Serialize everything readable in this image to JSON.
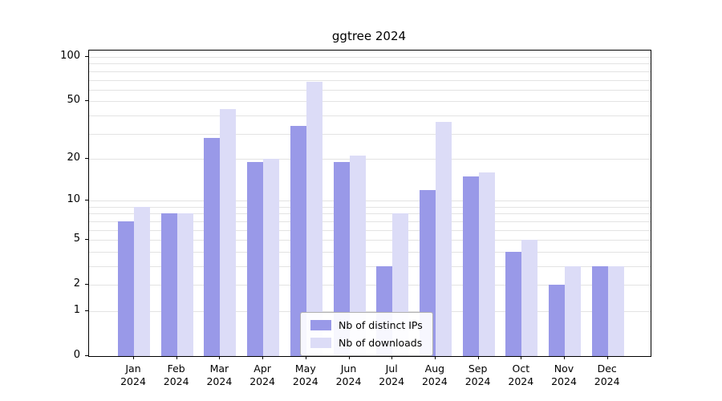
{
  "title": "ggtree 2024",
  "chart_data": {
    "type": "bar",
    "title": "ggtree 2024",
    "scale": "log1p",
    "grid": true,
    "legend_position": "lower center",
    "categories": [
      "Jan",
      "Feb",
      "Mar",
      "Apr",
      "May",
      "Jun",
      "Jul",
      "Aug",
      "Sep",
      "Oct",
      "Nov",
      "Dec"
    ],
    "year": "2024",
    "series": [
      {
        "name": "Nb of distinct IPs",
        "color": "#9999e8",
        "values": [
          7,
          8,
          28,
          19,
          34,
          19,
          3,
          12,
          15,
          4,
          2,
          3
        ]
      },
      {
        "name": "Nb of downloads",
        "color": "#dcdcf7",
        "values": [
          9,
          8,
          44,
          20,
          68,
          21,
          8,
          36,
          16,
          5,
          3,
          3
        ]
      }
    ],
    "yticks": [
      0,
      1,
      2,
      5,
      10,
      20,
      50,
      100
    ],
    "minor_gridlines": [
      3,
      4,
      6,
      7,
      8,
      9,
      30,
      40,
      60,
      70,
      80,
      90
    ],
    "ylim": [
      0,
      110
    ],
    "xlabel": "",
    "ylabel": ""
  },
  "colors": {
    "background": "#ffffff",
    "gridline": "#e3e3e3",
    "axis": "#000000",
    "legend_border": "#b0b0b0"
  }
}
